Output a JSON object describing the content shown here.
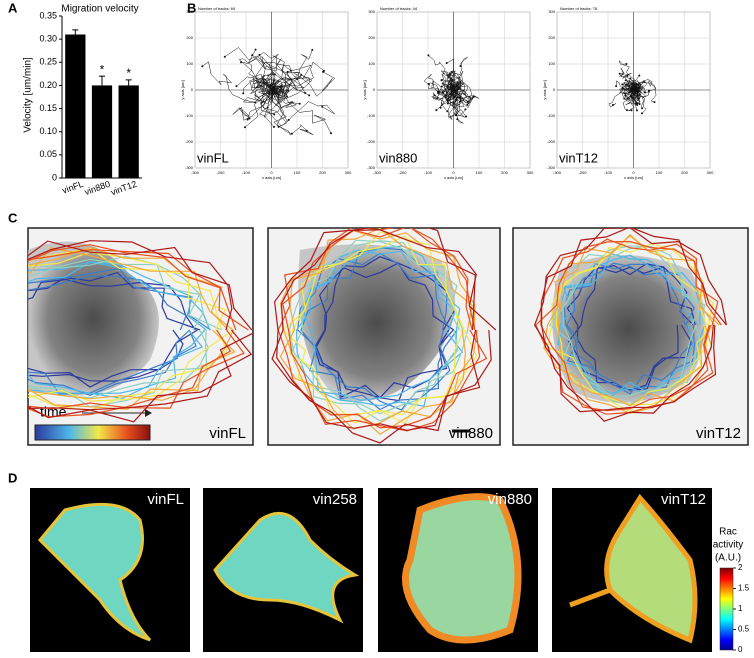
{
  "panel_labels": [
    "A",
    "B",
    "C",
    "D"
  ],
  "chart_data": {
    "type": "bar",
    "title": "Migration velocity",
    "y_label": "Velocity [um/min]",
    "categories": [
      "vinFL",
      "vin880",
      "vinT12"
    ],
    "values": [
      0.31,
      0.2,
      0.2
    ],
    "errors": [
      0.01,
      0.02,
      0.012
    ],
    "significance": [
      null,
      "*",
      "*"
    ],
    "color": "#000000",
    "ylim": [
      0,
      0.35
    ],
    "yticks": [
      0,
      0.05,
      {
        "value": 0.1,
        "label": "0.10"
      },
      0.15,
      {
        "value": 0.2,
        "label": "0.20"
      },
      0.25,
      {
        "value": 0.3,
        "label": "0.30"
      },
      0.35
    ]
  },
  "tracks": {
    "panels": [
      {
        "label": "vinFL",
        "title": "Number of tracks: 69"
      },
      {
        "label": "vin880",
        "title": "Number of tracks: 44"
      },
      {
        "label": "vinT12",
        "title": "Number of tracks: 78"
      }
    ],
    "ticks": [
      -300,
      -200,
      -100,
      0,
      100,
      200,
      300
    ],
    "lim": [
      -300,
      300
    ],
    "x_label": "x axis [um]",
    "y_label": "y axis [um]"
  },
  "contours": {
    "panels": [
      "vinFL",
      "vin880",
      "vinT12"
    ],
    "legend": "time"
  },
  "rac": {
    "panels": [
      "vinFL",
      "vin258",
      "vin880",
      "vinT12"
    ],
    "colorbar_title": [
      "Rac",
      "activity",
      "(A.U.)"
    ],
    "colorbar_ticks": [
      0,
      0.5,
      1,
      1.5,
      2
    ],
    "colorbar_lim": [
      0,
      2
    ]
  }
}
